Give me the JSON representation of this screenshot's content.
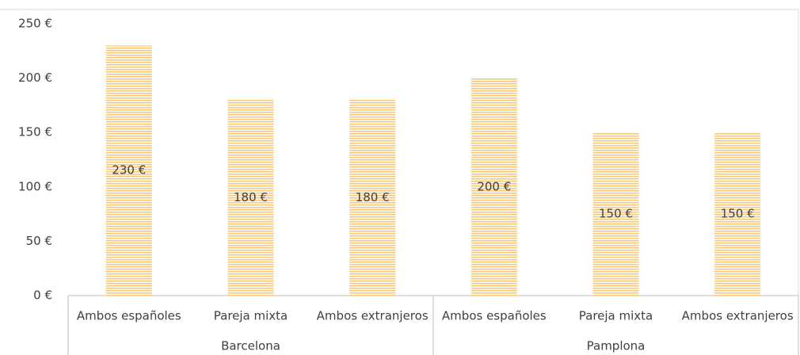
{
  "chart_data": {
    "type": "bar",
    "groups": [
      {
        "label": "Barcelona",
        "categories": [
          "Ambos españoles",
          "Pareja mixta",
          "Ambos extranjeros"
        ],
        "values": [
          230,
          180,
          180
        ],
        "value_labels": [
          "230 €",
          "180 €",
          "180 €"
        ]
      },
      {
        "label": "Pamplona",
        "categories": [
          "Ambos españoles",
          "Pareja mixta",
          "Ambos extranjeros"
        ],
        "values": [
          200,
          150,
          150
        ],
        "value_labels": [
          "200 €",
          "150 €",
          "150 €"
        ]
      }
    ],
    "color": "#f8c97a",
    "ylim": [
      0,
      250
    ],
    "yticks": [
      {
        "value": 0,
        "label": "0 €"
      },
      {
        "value": 50,
        "label": "50 €"
      },
      {
        "value": 100,
        "label": "100 €"
      },
      {
        "value": 150,
        "label": "150 €"
      },
      {
        "value": 200,
        "label": "200 €"
      },
      {
        "value": 250,
        "label": "250 €"
      }
    ],
    "grid": false
  }
}
